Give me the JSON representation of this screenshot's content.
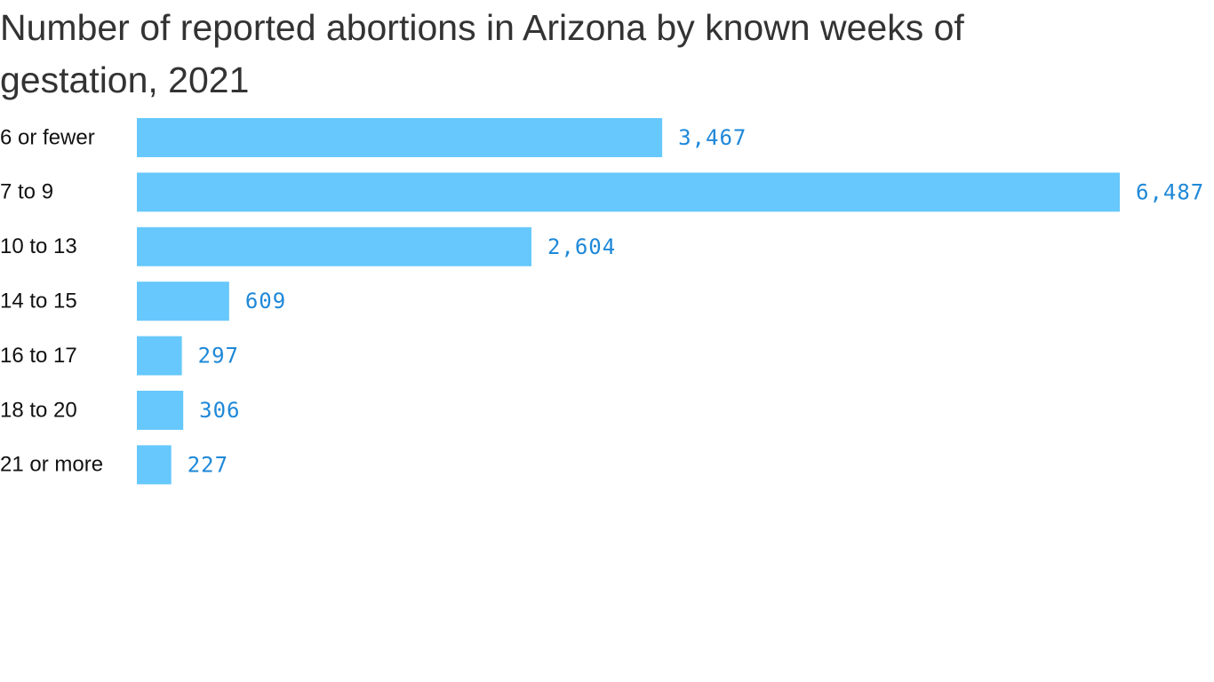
{
  "chart_data": {
    "type": "hbar",
    "title": "Number of reported abortions in Arizona by known weeks of gestation, 2021",
    "categories": [
      "6 or fewer",
      "7 to 9",
      "10 to 13",
      "14 to 15",
      "16 to 17",
      "18 to 20",
      "21 or more"
    ],
    "values": [
      3467,
      6487,
      2604,
      609,
      297,
      306,
      227
    ],
    "value_labels": [
      "3,467",
      "6,487",
      "2,604",
      "609",
      "297",
      "306",
      "227"
    ],
    "color": "#66c8fc"
  }
}
